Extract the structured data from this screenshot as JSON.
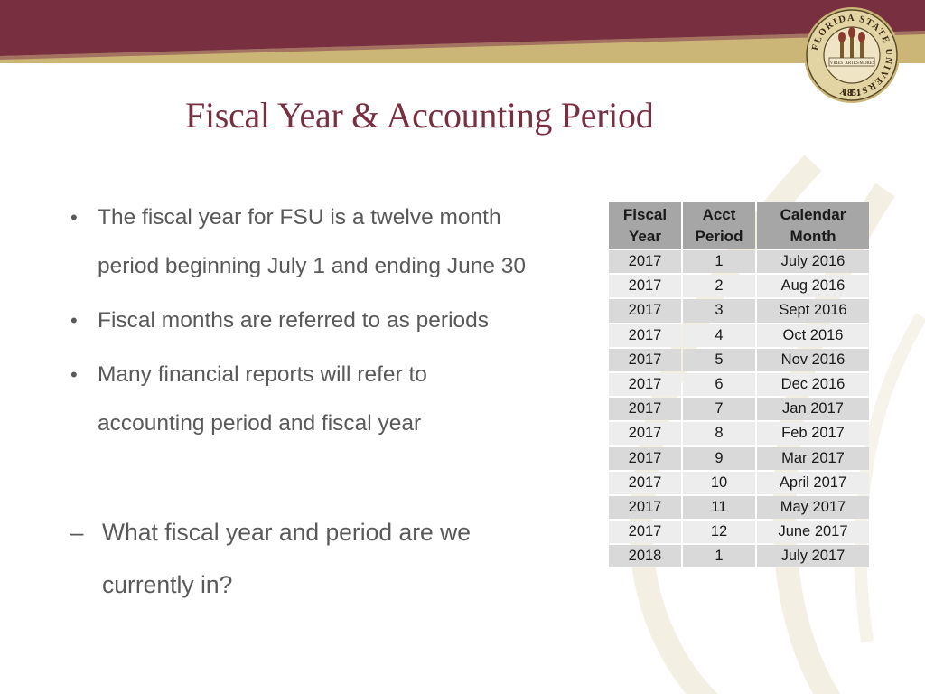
{
  "colors": {
    "garnet": "#782f40",
    "gold": "#cbb677",
    "header_cell": "#a6a6a6",
    "row_odd": "#d9d9d9",
    "row_even": "#ededed"
  },
  "seal": {
    "ring_text": "FLORIDA STATE UNIVERSITY",
    "year": "1851",
    "banner_left": "VIRES",
    "banner_mid": "ARTES",
    "banner_right": "MORES"
  },
  "slide": {
    "title": "Fiscal Year & Accounting Period",
    "bullets": [
      {
        "line1": "The fiscal year for FSU is a twelve month",
        "line2": "period beginning July 1 and ending June 30"
      },
      {
        "line1": "Fiscal months are referred to as periods",
        "line2": ""
      },
      {
        "line1": "Many financial reports will refer to",
        "line2": "accounting period and fiscal year"
      }
    ],
    "question": {
      "line1": "What fiscal year and period are we",
      "line2": "currently in?"
    }
  },
  "table": {
    "headers": [
      {
        "line1": "Fiscal",
        "line2": "Year"
      },
      {
        "line1": "Acct",
        "line2": "Period"
      },
      {
        "line1": "Calendar",
        "line2": "Month"
      }
    ],
    "rows": [
      {
        "year": "2017",
        "period": "1",
        "month": "July 2016"
      },
      {
        "year": "2017",
        "period": "2",
        "month": "Aug 2016"
      },
      {
        "year": "2017",
        "period": "3",
        "month": "Sept 2016"
      },
      {
        "year": "2017",
        "period": "4",
        "month": "Oct 2016"
      },
      {
        "year": "2017",
        "period": "5",
        "month": "Nov 2016"
      },
      {
        "year": "2017",
        "period": "6",
        "month": "Dec 2016"
      },
      {
        "year": "2017",
        "period": "7",
        "month": "Jan 2017"
      },
      {
        "year": "2017",
        "period": "8",
        "month": "Feb 2017"
      },
      {
        "year": "2017",
        "period": "9",
        "month": "Mar 2017"
      },
      {
        "year": "2017",
        "period": "10",
        "month": "April 2017"
      },
      {
        "year": "2017",
        "period": "11",
        "month": "May 2017"
      },
      {
        "year": "2017",
        "period": "12",
        "month": "June 2017"
      },
      {
        "year": "2018",
        "period": "1",
        "month": "July 2017"
      }
    ]
  }
}
